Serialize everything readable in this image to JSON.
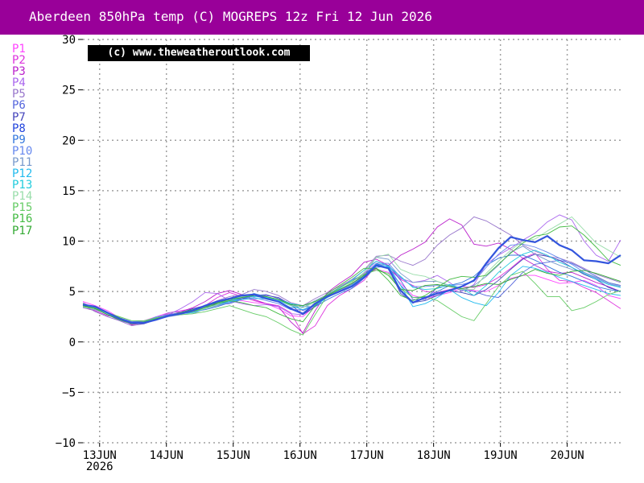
{
  "title": "Aberdeen 850hPa temp (C) MOGREPS 12z Fri 12 Jun 2026",
  "copyright": "(c) www.theweatheroutlook.com",
  "colors": {
    "title_bg": "#990099",
    "title_text": "#ffffff",
    "grid": "#a0a0a0",
    "mean_line": "#3355dd"
  },
  "chart_data": {
    "type": "line",
    "title": "Aberdeen 850hPa temp (C) MOGREPS 12z Fri 12 Jun 2026",
    "xlabel": "",
    "ylabel": "",
    "ylim": [
      -10,
      30
    ],
    "yticks": [
      -10,
      -5,
      0,
      5,
      10,
      15,
      20,
      25,
      30
    ],
    "ytick_labels": [
      "-10",
      "-5",
      "0",
      "5",
      "10",
      "15",
      "20",
      "25",
      "30"
    ],
    "xlim": [
      12.75,
      20.8
    ],
    "xticks": [
      13,
      14,
      15,
      16,
      17,
      18,
      19,
      20
    ],
    "xtick_labels": [
      "13JUN",
      "14JUN",
      "15JUN",
      "16JUN",
      "17JUN",
      "18JUN",
      "19JUN",
      "20JUN"
    ],
    "xtick_sublabel": "2026",
    "grid": true,
    "legend_position": "left",
    "series": [
      {
        "name": "P1",
        "color": "#ff44ff",
        "values": [
          4.0,
          3.6,
          3.1,
          2.4,
          1.9,
          2.1,
          2.5,
          2.9,
          3.1,
          3.3,
          3.6,
          3.9,
          4.2,
          4.1,
          3.9,
          3.8,
          3.3,
          2.6,
          2.5,
          3.6,
          4.6,
          5.2,
          5.8,
          6.6,
          7.2,
          6.9,
          5.8,
          4.6,
          4.3,
          4.6,
          4.9,
          5.3,
          5.1,
          5.0,
          5.6,
          6.3,
          6.6,
          6.6,
          6.2,
          5.8,
          5.9,
          6.1,
          5.6,
          4.6,
          4.3
        ]
      },
      {
        "name": "P2",
        "color": "#dd33dd",
        "values": [
          3.6,
          3.5,
          2.8,
          2.3,
          1.7,
          1.9,
          2.4,
          2.8,
          2.8,
          3.2,
          3.6,
          4.4,
          4.9,
          4.5,
          4.1,
          3.8,
          3.6,
          2.9,
          0.8,
          1.6,
          3.6,
          4.6,
          5.3,
          6.1,
          7.6,
          7.3,
          6.2,
          5.6,
          5.0,
          4.9,
          5.2,
          5.5,
          5.4,
          5.7,
          6.4,
          7.3,
          8.3,
          8.8,
          7.2,
          6.1,
          6.0,
          5.4,
          4.9,
          4.1,
          3.3
        ]
      },
      {
        "name": "P3",
        "color": "#bb22cc",
        "values": [
          3.4,
          3.1,
          2.6,
          2.4,
          1.7,
          2.0,
          2.2,
          2.6,
          3.0,
          3.4,
          4.0,
          4.8,
          5.1,
          4.7,
          4.2,
          3.8,
          3.5,
          2.0,
          0.9,
          3.1,
          4.9,
          5.8,
          6.6,
          7.9,
          8.2,
          7.6,
          8.6,
          9.2,
          9.9,
          11.4,
          12.2,
          11.6,
          9.7,
          9.5,
          9.8,
          9.2,
          8.3,
          7.6,
          7.0,
          6.8,
          6.9,
          6.4,
          5.9,
          5.5,
          5.0
        ]
      },
      {
        "name": "P4",
        "color": "#aa66ee",
        "values": [
          3.9,
          3.3,
          2.7,
          2.1,
          1.8,
          2.0,
          2.3,
          2.7,
          3.3,
          4.0,
          4.9,
          4.8,
          4.1,
          3.8,
          3.6,
          3.7,
          3.5,
          2.8,
          2.7,
          3.7,
          4.4,
          5.1,
          5.7,
          6.8,
          8.0,
          7.6,
          6.3,
          5.9,
          6.1,
          6.6,
          5.9,
          5.0,
          5.7,
          7.7,
          8.6,
          9.3,
          10.1,
          10.8,
          11.9,
          12.6,
          12.1,
          10.0,
          8.6,
          8.0,
          10.1
        ]
      },
      {
        "name": "P5",
        "color": "#9977cc",
        "values": [
          3.7,
          3.0,
          2.5,
          2.1,
          1.6,
          1.8,
          2.3,
          2.9,
          3.0,
          3.1,
          3.6,
          4.1,
          4.5,
          4.7,
          5.2,
          5.0,
          4.6,
          3.9,
          3.6,
          4.3,
          4.9,
          5.5,
          6.2,
          7.1,
          8.5,
          8.6,
          8.0,
          7.6,
          8.2,
          9.6,
          10.6,
          11.3,
          12.4,
          12.0,
          11.3,
          10.6,
          9.6,
          9.0,
          8.5,
          8.3,
          7.9,
          7.3,
          6.7,
          6.3,
          5.9
        ]
      },
      {
        "name": "P6",
        "color": "#5566dd",
        "values": [
          3.5,
          3.4,
          2.9,
          2.4,
          2.0,
          2.1,
          2.4,
          2.6,
          2.9,
          3.1,
          3.5,
          3.7,
          3.8,
          4.2,
          4.6,
          4.7,
          4.3,
          3.8,
          3.1,
          3.7,
          4.7,
          5.4,
          6.1,
          6.7,
          7.7,
          7.6,
          6.1,
          4.2,
          4.2,
          5.4,
          5.6,
          5.2,
          5.0,
          4.6,
          4.4,
          5.6,
          6.9,
          7.7,
          7.9,
          8.1,
          7.8,
          7.2,
          6.5,
          5.9,
          5.6
        ]
      },
      {
        "name": "P7",
        "color": "#4444bb",
        "values": [
          3.6,
          3.3,
          2.8,
          2.3,
          1.8,
          1.8,
          2.2,
          2.7,
          2.9,
          3.3,
          3.6,
          3.8,
          4.0,
          4.3,
          4.6,
          4.6,
          4.4,
          3.7,
          2.7,
          3.5,
          4.6,
          5.2,
          5.7,
          6.6,
          7.8,
          7.3,
          4.8,
          3.9,
          4.1,
          4.6,
          5.1,
          4.9,
          4.6,
          5.2,
          6.1,
          7.2,
          8.2,
          8.7,
          8.5,
          8.1,
          7.4,
          6.7,
          6.2,
          5.4,
          5.0
        ]
      },
      {
        "name": "P8",
        "color": "#2244dd",
        "values": [
          3.7,
          3.5,
          2.9,
          2.3,
          1.9,
          1.9,
          2.2,
          2.6,
          2.8,
          3.1,
          3.6,
          4.0,
          4.3,
          4.6,
          4.7,
          4.3,
          4.0,
          3.3,
          2.8,
          3.8,
          4.5,
          5.0,
          5.5,
          6.4,
          7.6,
          7.3,
          5.1,
          3.9,
          4.4,
          4.8,
          5.1,
          5.5,
          6.1,
          7.8,
          9.3,
          10.4,
          10.1,
          9.9,
          10.5,
          9.6,
          9.1,
          8.1,
          8.0,
          7.8,
          8.6
        ]
      },
      {
        "name": "P9",
        "color": "#3377dd",
        "values": [
          3.7,
          3.4,
          2.8,
          2.2,
          1.8,
          1.9,
          2.3,
          2.6,
          2.8,
          3.0,
          3.2,
          3.5,
          3.9,
          4.4,
          4.8,
          4.5,
          4.0,
          3.4,
          3.5,
          3.5,
          4.2,
          4.8,
          5.3,
          6.3,
          7.4,
          7.5,
          5.6,
          4.4,
          4.4,
          5.0,
          5.6,
          5.9,
          6.5,
          7.6,
          8.3,
          8.6,
          8.6,
          8.1,
          7.5,
          6.9,
          6.5,
          6.0,
          5.5,
          5.2,
          5.0
        ]
      },
      {
        "name": "P10",
        "color": "#6688ee",
        "values": [
          3.5,
          3.4,
          2.9,
          2.4,
          2.0,
          2.0,
          2.5,
          2.7,
          2.9,
          3.1,
          3.4,
          3.6,
          3.9,
          4.2,
          4.4,
          4.1,
          3.8,
          3.2,
          3.2,
          3.7,
          4.5,
          5.1,
          5.6,
          6.5,
          7.8,
          7.8,
          6.4,
          5.5,
          5.5,
          5.6,
          5.6,
          5.7,
          6.0,
          7.4,
          8.7,
          9.6,
          9.7,
          9.4,
          8.9,
          8.3,
          7.7,
          6.9,
          6.3,
          5.8,
          5.4
        ]
      },
      {
        "name": "P11",
        "color": "#7799cc",
        "values": [
          3.4,
          3.2,
          2.8,
          2.3,
          1.8,
          1.9,
          2.2,
          2.5,
          2.7,
          2.8,
          3.3,
          3.6,
          4.0,
          4.4,
          4.6,
          4.4,
          4.1,
          3.7,
          3.4,
          4.1,
          4.7,
          5.2,
          5.7,
          6.6,
          8.4,
          8.2,
          6.8,
          5.9,
          6.0,
          6.0,
          5.6,
          5.1,
          5.6,
          6.5,
          7.6,
          8.9,
          9.5,
          8.7,
          8.1,
          7.6,
          7.2,
          6.9,
          6.4,
          5.9,
          5.5
        ]
      },
      {
        "name": "P12",
        "color": "#22bbee",
        "values": [
          3.8,
          3.3,
          2.7,
          2.2,
          1.8,
          2.0,
          2.4,
          2.6,
          2.8,
          2.9,
          3.3,
          3.7,
          4.0,
          4.2,
          4.3,
          4.3,
          4.1,
          3.6,
          3.2,
          3.6,
          4.4,
          5.0,
          5.6,
          6.5,
          7.7,
          7.4,
          5.6,
          3.5,
          3.8,
          4.4,
          5.2,
          4.4,
          3.9,
          3.6,
          4.9,
          6.6,
          7.5,
          7.3,
          6.9,
          6.4,
          6.0,
          5.6,
          5.2,
          4.8,
          4.6
        ]
      },
      {
        "name": "P13",
        "color": "#22ccdd",
        "values": [
          3.6,
          3.3,
          2.8,
          2.2,
          1.9,
          2.0,
          2.3,
          2.6,
          2.9,
          3.2,
          3.6,
          3.9,
          4.1,
          4.4,
          4.5,
          4.4,
          4.2,
          3.8,
          3.6,
          4.0,
          4.6,
          5.3,
          6.1,
          7.1,
          8.0,
          7.5,
          6.5,
          5.4,
          5.2,
          5.3,
          5.7,
          5.3,
          4.6,
          5.6,
          6.9,
          7.9,
          8.7,
          9.1,
          8.6,
          7.9,
          7.4,
          6.8,
          6.2,
          5.7,
          5.4
        ]
      },
      {
        "name": "P14",
        "color": "#99ddaa",
        "values": [
          3.7,
          3.4,
          2.8,
          2.3,
          1.8,
          2.0,
          2.3,
          2.6,
          2.8,
          3.0,
          3.3,
          3.7,
          4.2,
          4.5,
          4.6,
          4.5,
          4.2,
          3.6,
          3.4,
          3.9,
          4.6,
          5.2,
          5.9,
          6.9,
          8.4,
          8.7,
          7.2,
          6.7,
          6.5,
          6.0,
          5.5,
          5.2,
          5.2,
          6.8,
          8.0,
          9.1,
          10.0,
          10.2,
          11.0,
          11.7,
          12.4,
          11.1,
          9.8,
          9.1,
          8.4
        ]
      },
      {
        "name": "P15",
        "color": "#66cc66",
        "values": [
          3.5,
          3.3,
          2.9,
          2.5,
          2.1,
          2.1,
          2.4,
          2.6,
          2.7,
          2.8,
          3.0,
          3.3,
          3.6,
          3.2,
          2.8,
          2.5,
          1.9,
          1.2,
          0.7,
          2.7,
          4.6,
          5.4,
          6.0,
          6.7,
          7.1,
          6.8,
          5.3,
          4.4,
          4.5,
          4.1,
          3.3,
          2.5,
          2.1,
          3.8,
          5.5,
          6.6,
          7.0,
          5.8,
          4.5,
          4.5,
          3.1,
          3.4,
          4.0,
          4.7,
          5.1
        ]
      },
      {
        "name": "P16",
        "color": "#44bb44",
        "values": [
          3.8,
          3.4,
          2.9,
          2.4,
          1.9,
          2.0,
          2.3,
          2.6,
          2.8,
          3.0,
          3.4,
          3.8,
          4.1,
          3.9,
          3.6,
          3.4,
          2.8,
          2.3,
          2.0,
          3.6,
          4.8,
          5.6,
          6.4,
          7.3,
          7.3,
          6.1,
          4.6,
          4.1,
          4.6,
          5.4,
          6.2,
          6.5,
          6.4,
          6.6,
          7.7,
          8.8,
          9.8,
          10.5,
          10.7,
          11.4,
          11.5,
          10.6,
          9.4,
          8.1,
          7.6
        ]
      },
      {
        "name": "P17",
        "color": "#33aa33",
        "values": [
          3.6,
          3.3,
          2.7,
          2.2,
          1.8,
          1.9,
          2.3,
          2.6,
          2.9,
          3.2,
          3.5,
          3.9,
          4.2,
          4.4,
          4.6,
          4.5,
          4.2,
          3.7,
          3.6,
          4.0,
          4.6,
          5.2,
          5.8,
          6.6,
          7.3,
          6.6,
          5.2,
          5.1,
          5.6,
          5.7,
          5.5,
          5.3,
          5.5,
          5.8,
          5.7,
          6.2,
          6.6,
          7.2,
          6.8,
          6.6,
          7.0,
          7.1,
          6.8,
          6.4,
          6.0
        ]
      }
    ]
  }
}
